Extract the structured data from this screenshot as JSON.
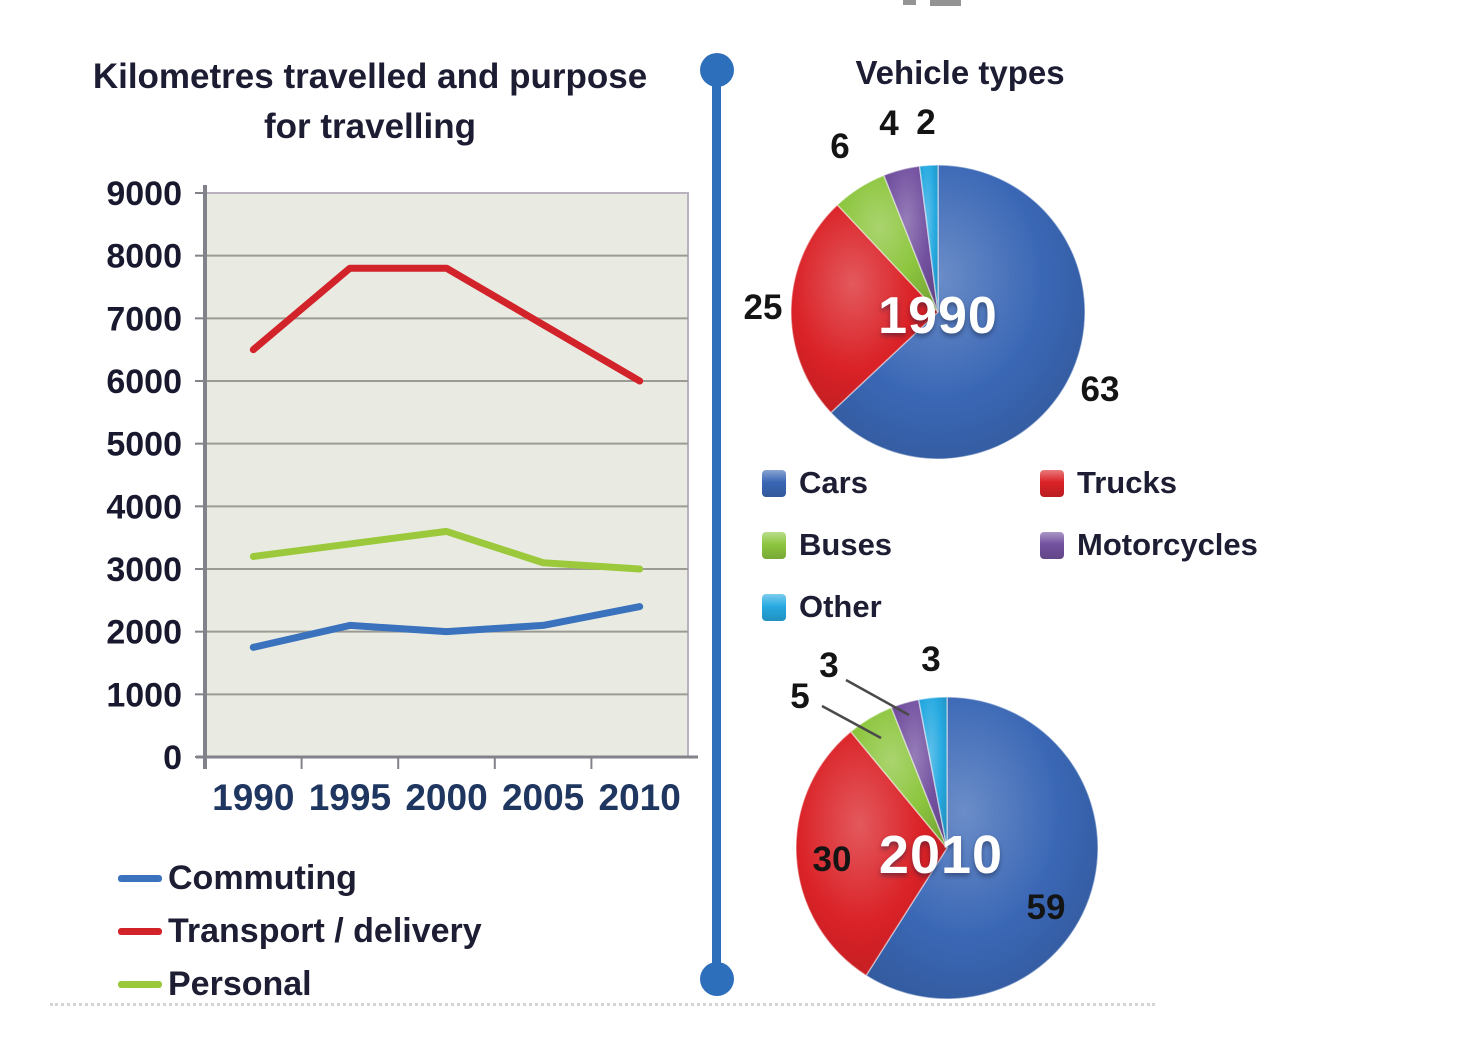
{
  "chart_data": [
    {
      "id": "km_travelled_line_chart",
      "type": "line",
      "title": "Kilometres travelled and purpose for travelling",
      "title_lines": [
        "Kilometres travelled and purpose",
        "for travelling"
      ],
      "x": [
        "1990",
        "1995",
        "2000",
        "2005",
        "2010"
      ],
      "series": [
        {
          "name": "Commuting",
          "color": "#3a72bd",
          "values": [
            1750,
            2100,
            2000,
            2100,
            2400
          ]
        },
        {
          "name": "Transport / delivery",
          "color": "#d2232a",
          "values": [
            6500,
            7800,
            7800,
            6900,
            6000
          ]
        },
        {
          "name": "Personal",
          "color": "#9cc93c",
          "values": [
            3200,
            3400,
            3600,
            3100,
            3000
          ]
        }
      ],
      "ylim": [
        0,
        9000
      ],
      "ytick_step": 1000,
      "grid": true,
      "legend_position": "bottom-left",
      "plot_bg": "#e9ebe2",
      "grid_color": "#9b9b93",
      "axis_color": "#82828a",
      "ytick_label_color": "#18182e",
      "xtick_label_color": "#1f3660"
    },
    {
      "id": "vehicle_types_1990_pie",
      "type": "pie",
      "title": "Vehicle types",
      "center_label": "1990",
      "categories": [
        "Cars",
        "Trucks",
        "Buses",
        "Motorcycles",
        "Other"
      ],
      "values": [
        63,
        25,
        6,
        4,
        2
      ],
      "colors": [
        "#3a67b5",
        "#da2227",
        "#8dc63f",
        "#7351a0",
        "#27aae1"
      ],
      "start_angle_deg": 0,
      "direction": "clockwise",
      "legend_position": "below"
    },
    {
      "id": "vehicle_types_2010_pie",
      "type": "pie",
      "center_label": "2010",
      "categories": [
        "Cars",
        "Trucks",
        "Buses",
        "Motorcycles",
        "Other"
      ],
      "values": [
        59,
        30,
        5,
        3,
        3
      ],
      "colors": [
        "#3a67b5",
        "#da2227",
        "#8dc63f",
        "#7351a0",
        "#27aae1"
      ],
      "start_angle_deg": 0,
      "direction": "clockwise"
    }
  ],
  "divider_color": "#2e6fbc"
}
